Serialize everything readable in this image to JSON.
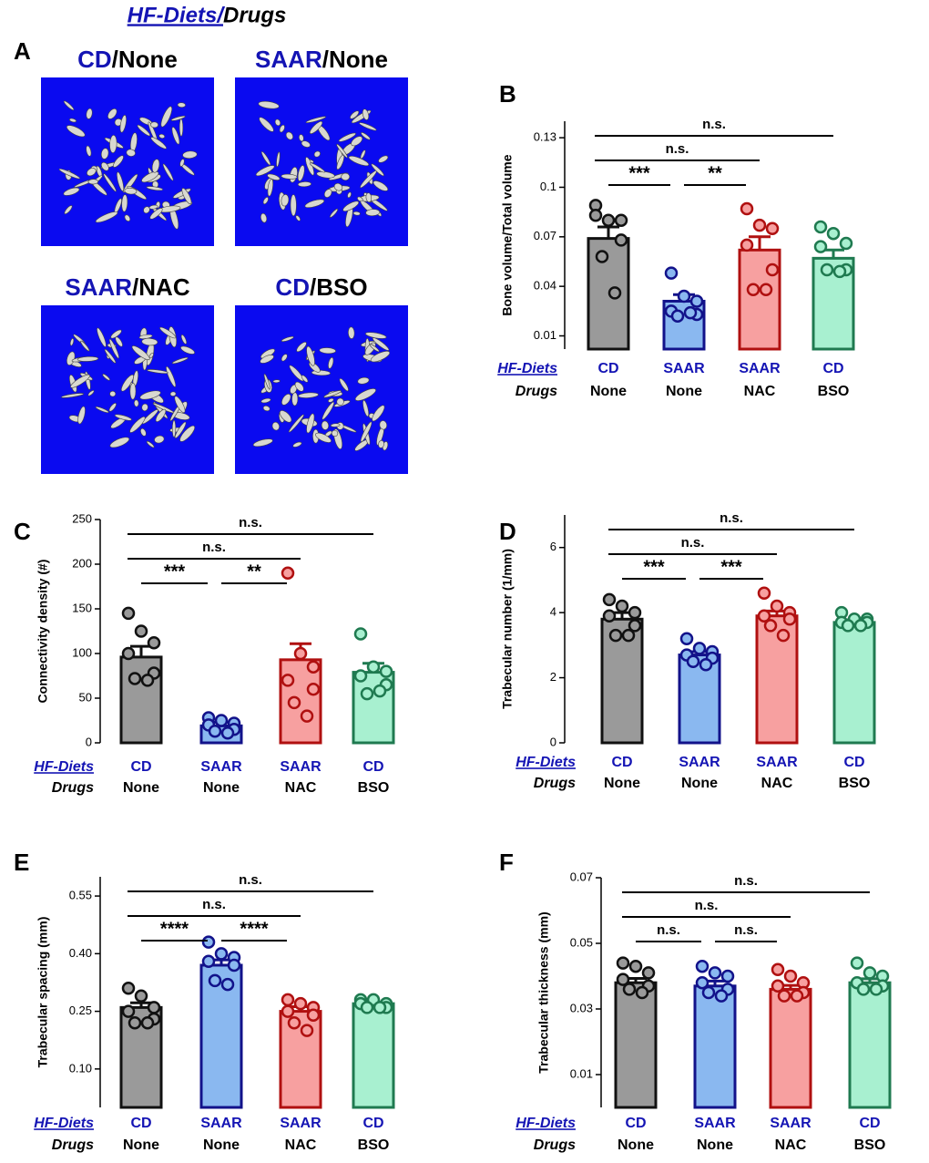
{
  "header": {
    "diets": "HF-Diets/",
    "drugs": "Drugs"
  },
  "panel_a": {
    "label": "A",
    "images": [
      {
        "diet": "CD",
        "drug": "/None"
      },
      {
        "diet": "SAAR",
        "drug": "/None"
      },
      {
        "diet": "SAAR",
        "drug": "/NAC"
      },
      {
        "diet": "CD",
        "drug": "/BSO"
      }
    ]
  },
  "chart_data": [
    {
      "type": "bar",
      "label": "B",
      "ylabel": "Bone volume/Total volume",
      "ylim": [
        0.002,
        0.14
      ],
      "yticks": [
        0.01,
        0.04,
        0.07,
        0.1,
        0.13
      ],
      "row_labels": [
        "HF-Diets",
        "Drugs"
      ],
      "categories": [
        "CD",
        "SAAR",
        "SAAR",
        "CD"
      ],
      "groups": [
        "None",
        "None",
        "NAC",
        "BSO"
      ],
      "colors": [
        "#9a9a9a",
        "#8ab8f0",
        "#f7a0a0",
        "#a8f0d0"
      ],
      "edge_colors": [
        "#111111",
        "#12128a",
        "#b01010",
        "#1f7a50"
      ],
      "values": [
        0.069,
        0.031,
        0.062,
        0.057
      ],
      "errors": [
        0.007,
        0.004,
        0.008,
        0.005
      ],
      "points": [
        [
          0.089,
          0.08,
          0.08,
          0.083,
          0.068,
          0.058,
          0.036
        ],
        [
          0.048,
          0.034,
          0.031,
          0.025,
          0.023,
          0.022,
          0.024
        ],
        [
          0.087,
          0.077,
          0.075,
          0.065,
          0.05,
          0.038,
          0.038
        ],
        [
          0.076,
          0.072,
          0.066,
          0.064,
          0.05,
          0.05,
          0.049
        ]
      ],
      "significance": [
        {
          "pair": [
            0,
            1
          ],
          "label": "***"
        },
        {
          "pair": [
            1,
            2
          ],
          "label": "**"
        },
        {
          "pair": [
            0,
            2
          ],
          "label": "n.s."
        },
        {
          "pair": [
            0,
            3
          ],
          "label": "n.s."
        }
      ]
    },
    {
      "type": "bar",
      "label": "C",
      "ylabel": "Connectivity  density (#)",
      "ylim": [
        0,
        250
      ],
      "yticks": [
        0,
        50,
        100,
        150,
        200,
        250
      ],
      "row_labels": [
        "HF-Diets",
        "Drugs"
      ],
      "categories": [
        "CD",
        "SAAR",
        "SAAR",
        "CD"
      ],
      "groups": [
        "None",
        "None",
        "NAC",
        "BSO"
      ],
      "colors": [
        "#9a9a9a",
        "#8ab8f0",
        "#f7a0a0",
        "#a8f0d0"
      ],
      "edge_colors": [
        "#111111",
        "#12128a",
        "#b01010",
        "#1f7a50"
      ],
      "values": [
        96,
        19,
        93,
        79
      ],
      "errors": [
        12,
        4,
        18,
        10
      ],
      "points": [
        [
          145,
          125,
          112,
          100,
          78,
          72,
          70
        ],
        [
          28,
          25,
          22,
          20,
          15,
          13,
          11
        ],
        [
          190,
          100,
          85,
          70,
          60,
          45,
          30
        ],
        [
          122,
          85,
          80,
          75,
          65,
          55,
          58
        ]
      ],
      "significance": [
        {
          "pair": [
            0,
            1
          ],
          "label": "***"
        },
        {
          "pair": [
            1,
            2
          ],
          "label": "**"
        },
        {
          "pair": [
            0,
            2
          ],
          "label": "n.s."
        },
        {
          "pair": [
            0,
            3
          ],
          "label": "n.s."
        }
      ]
    },
    {
      "type": "bar",
      "label": "D",
      "ylabel": "Trabecular number (1/mm)",
      "ylim": [
        0,
        7
      ],
      "yticks": [
        0,
        2,
        4,
        6
      ],
      "row_labels": [
        "HF-Diets",
        "Drugs"
      ],
      "categories": [
        "CD",
        "SAAR",
        "SAAR",
        "CD"
      ],
      "groups": [
        "None",
        "None",
        "NAC",
        "BSO"
      ],
      "colors": [
        "#9a9a9a",
        "#8ab8f0",
        "#f7a0a0",
        "#a8f0d0"
      ],
      "edge_colors": [
        "#111111",
        "#12128a",
        "#b01010",
        "#1f7a50"
      ],
      "values": [
        3.8,
        2.7,
        3.9,
        3.7
      ],
      "errors": [
        0.2,
        0.1,
        0.15,
        0.08
      ],
      "points": [
        [
          4.4,
          4.2,
          4.0,
          3.9,
          3.6,
          3.3,
          3.3
        ],
        [
          3.2,
          2.9,
          2.8,
          2.7,
          2.6,
          2.5,
          2.4
        ],
        [
          4.6,
          4.2,
          4.0,
          3.9,
          3.8,
          3.6,
          3.3
        ],
        [
          4.0,
          3.8,
          3.8,
          3.7,
          3.7,
          3.6,
          3.6
        ]
      ],
      "significance": [
        {
          "pair": [
            0,
            1
          ],
          "label": "***"
        },
        {
          "pair": [
            1,
            2
          ],
          "label": "***"
        },
        {
          "pair": [
            0,
            2
          ],
          "label": "n.s."
        },
        {
          "pair": [
            0,
            3
          ],
          "label": "n.s."
        }
      ]
    },
    {
      "type": "bar",
      "label": "E",
      "ylabel": "Trabecular spacing (mm)",
      "ylim": [
        0,
        0.6
      ],
      "yticks": [
        {
          "value": 0.1,
          "label": "0.10"
        },
        0.25,
        {
          "value": 0.4,
          "label": "0.40"
        },
        0.55
      ],
      "row_labels": [
        "HF-Diets",
        "Drugs"
      ],
      "categories": [
        "CD",
        "SAAR",
        "SAAR",
        "CD"
      ],
      "groups": [
        "None",
        "None",
        "NAC",
        "BSO"
      ],
      "colors": [
        "#9a9a9a",
        "#8ab8f0",
        "#f7a0a0",
        "#a8f0d0"
      ],
      "edge_colors": [
        "#111111",
        "#12128a",
        "#b01010",
        "#1f7a50"
      ],
      "values": [
        0.26,
        0.37,
        0.25,
        0.27
      ],
      "errors": [
        0.012,
        0.014,
        0.012,
        0.004
      ],
      "points": [
        [
          0.31,
          0.29,
          0.26,
          0.25,
          0.23,
          0.22,
          0.22
        ],
        [
          0.43,
          0.4,
          0.39,
          0.38,
          0.37,
          0.33,
          0.32
        ],
        [
          0.28,
          0.27,
          0.26,
          0.25,
          0.24,
          0.22,
          0.2
        ],
        [
          0.28,
          0.28,
          0.27,
          0.27,
          0.26,
          0.26,
          0.26
        ]
      ],
      "significance": [
        {
          "pair": [
            0,
            1
          ],
          "label": "****"
        },
        {
          "pair": [
            1,
            2
          ],
          "label": "****"
        },
        {
          "pair": [
            0,
            2
          ],
          "label": "n.s."
        },
        {
          "pair": [
            0,
            3
          ],
          "label": "n.s."
        }
      ]
    },
    {
      "type": "bar",
      "label": "F",
      "ylabel": "Trabecular thickness (mm)",
      "ylim": [
        0,
        0.07
      ],
      "yticks": [
        0.01,
        0.03,
        0.05,
        0.07
      ],
      "row_labels": [
        "HF-Diets",
        "Drugs"
      ],
      "categories": [
        "CD",
        "SAAR",
        "SAAR",
        "CD"
      ],
      "groups": [
        "None",
        "None",
        "NAC",
        "BSO"
      ],
      "colors": [
        "#9a9a9a",
        "#8ab8f0",
        "#f7a0a0",
        "#a8f0d0"
      ],
      "edge_colors": [
        "#111111",
        "#12128a",
        "#b01010",
        "#1f7a50"
      ],
      "values": [
        0.038,
        0.037,
        0.036,
        0.038
      ],
      "errors": [
        0.0013,
        0.0015,
        0.0012,
        0.0012
      ],
      "points": [
        [
          0.044,
          0.043,
          0.041,
          0.039,
          0.037,
          0.036,
          0.035
        ],
        [
          0.043,
          0.041,
          0.04,
          0.038,
          0.036,
          0.035,
          0.034
        ],
        [
          0.042,
          0.04,
          0.038,
          0.037,
          0.035,
          0.034,
          0.034
        ],
        [
          0.044,
          0.041,
          0.04,
          0.038,
          0.037,
          0.036,
          0.036
        ]
      ],
      "significance": [
        {
          "pair": [
            0,
            1
          ],
          "label": "n.s."
        },
        {
          "pair": [
            1,
            2
          ],
          "label": "n.s."
        },
        {
          "pair": [
            0,
            2
          ],
          "label": "n.s."
        },
        {
          "pair": [
            0,
            3
          ],
          "label": "n.s."
        }
      ]
    }
  ]
}
